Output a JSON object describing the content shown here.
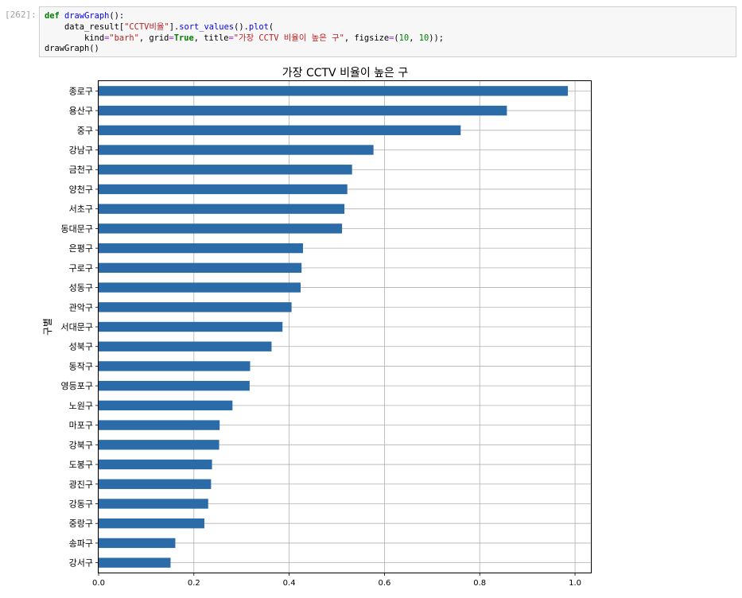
{
  "cell": {
    "prompt": "[262]:",
    "code": {
      "l1_def": "def",
      "l1_fn": "drawGraph",
      "l1_rest": "():",
      "l2_a": "    data_result[",
      "l2_str": "\"CCTV비율\"",
      "l2_b": "].",
      "l2_m1": "sort_values",
      "l2_c": "().",
      "l2_m2": "plot",
      "l2_d": "(",
      "l3_a": "        kind",
      "l3_eq1": "=",
      "l3_s1": "\"barh\"",
      "l3_b": ", grid",
      "l3_eq2": "=",
      "l3_true": "True",
      "l3_c": ", title",
      "l3_eq3": "=",
      "l3_s2": "\"가장 CCTV 비율이 높은 구\"",
      "l3_d": ", figsize",
      "l3_eq4": "=",
      "l3_e": "(",
      "l3_n1": "10",
      "l3_f": ", ",
      "l3_n2": "10",
      "l3_g": "));",
      "l4": "drawGraph()"
    }
  },
  "chart_data": {
    "type": "bar",
    "orientation": "horizontal",
    "title": "가장 CCTV 비율이 높은 구",
    "ylabel": "구별",
    "xlabel": "",
    "xlim": [
      0,
      1.035
    ],
    "xticks": [
      "0.0",
      "0.2",
      "0.4",
      "0.6",
      "0.8",
      "1.0"
    ],
    "grid": true,
    "bar_color": "#2b6ca8",
    "categories": [
      "종로구",
      "용산구",
      "중구",
      "강남구",
      "금천구",
      "양천구",
      "서초구",
      "동대문구",
      "은평구",
      "구로구",
      "성동구",
      "관악구",
      "서대문구",
      "성북구",
      "동작구",
      "영등포구",
      "노원구",
      "마포구",
      "강북구",
      "도봉구",
      "광진구",
      "강동구",
      "중랑구",
      "송파구",
      "강서구"
    ],
    "values": [
      0.985,
      0.857,
      0.76,
      0.577,
      0.532,
      0.522,
      0.516,
      0.511,
      0.429,
      0.426,
      0.424,
      0.405,
      0.386,
      0.363,
      0.318,
      0.317,
      0.281,
      0.254,
      0.253,
      0.238,
      0.236,
      0.23,
      0.222,
      0.161,
      0.151
    ]
  }
}
